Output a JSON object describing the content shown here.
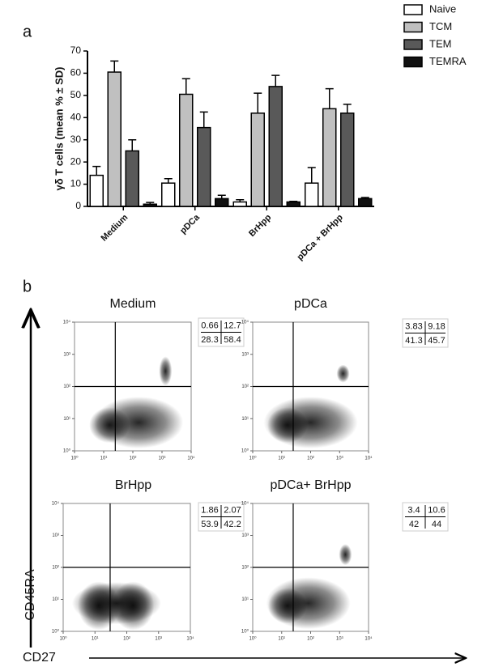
{
  "panel_labels": [
    "a",
    "b"
  ],
  "chart_data": [
    {
      "type": "bar",
      "y_label": "γδ T cells (mean % ± SD)",
      "categories": [
        "Medium",
        "pDCa",
        "BrHpp",
        "pDCa + BrHpp"
      ],
      "series": [
        {
          "name": "Naive",
          "color": "#ffffff",
          "values": [
            14,
            10.5,
            2,
            10.5
          ],
          "errors": [
            4,
            2,
            1,
            7
          ]
        },
        {
          "name": "TCM",
          "color": "#c0c0c0",
          "values": [
            60.5,
            50.5,
            42,
            44
          ],
          "errors": [
            5,
            7,
            9,
            9
          ]
        },
        {
          "name": "TEM",
          "color": "#595959",
          "values": [
            25,
            35.5,
            54,
            42
          ],
          "errors": [
            5,
            7,
            5,
            4
          ]
        },
        {
          "name": "TEMRA",
          "color": "#111111",
          "values": [
            1,
            3.5,
            2,
            3.5
          ],
          "errors": [
            0.8,
            1.5,
            0.3,
            0.5
          ]
        }
      ],
      "ylim": [
        0,
        70
      ],
      "yticks": [
        0,
        10,
        20,
        30,
        40,
        50,
        60,
        70
      ],
      "legend": "top-right"
    },
    {
      "type": "flow",
      "x_label": "CD27",
      "y_label": "CD45RA",
      "log_scale": true,
      "xlim": [
        1,
        10000
      ],
      "ylim": [
        1,
        10000
      ],
      "xticks": [
        {
          "value": 1,
          "label": "10⁰"
        },
        {
          "value": 10,
          "label": "10¹"
        },
        {
          "value": 100,
          "label": "10²"
        },
        {
          "value": 1000,
          "label": "10³"
        },
        {
          "value": 10000,
          "label": "10⁴"
        }
      ],
      "yticks": [
        {
          "value": 1,
          "label": "10⁰"
        },
        {
          "value": 10,
          "label": "10¹"
        },
        {
          "value": 100,
          "label": "10²"
        },
        {
          "value": 1000,
          "label": "10³"
        },
        {
          "value": 10000,
          "label": "10⁴"
        }
      ],
      "plots": [
        {
          "title": "Medium",
          "gate_x": 25,
          "gate_y": 100,
          "quadrants": [
            [
              0.66,
              12.7
            ],
            [
              28.3,
              58.4
            ]
          ]
        },
        {
          "title": "pDCa",
          "gate_x": 25,
          "gate_y": 100,
          "quadrants": [
            [
              3.83,
              9.18
            ],
            [
              41.3,
              45.7
            ]
          ]
        },
        {
          "title": "BrHpp",
          "gate_x": 30,
          "gate_y": 100,
          "quadrants": [
            [
              1.86,
              2.07
            ],
            [
              53.9,
              42.2
            ]
          ]
        },
        {
          "title": "pDCa+ BrHpp",
          "gate_x": 25,
          "gate_y": 100,
          "quadrants": [
            [
              3.4,
              10.6
            ],
            [
              42,
              44
            ]
          ]
        }
      ]
    }
  ]
}
